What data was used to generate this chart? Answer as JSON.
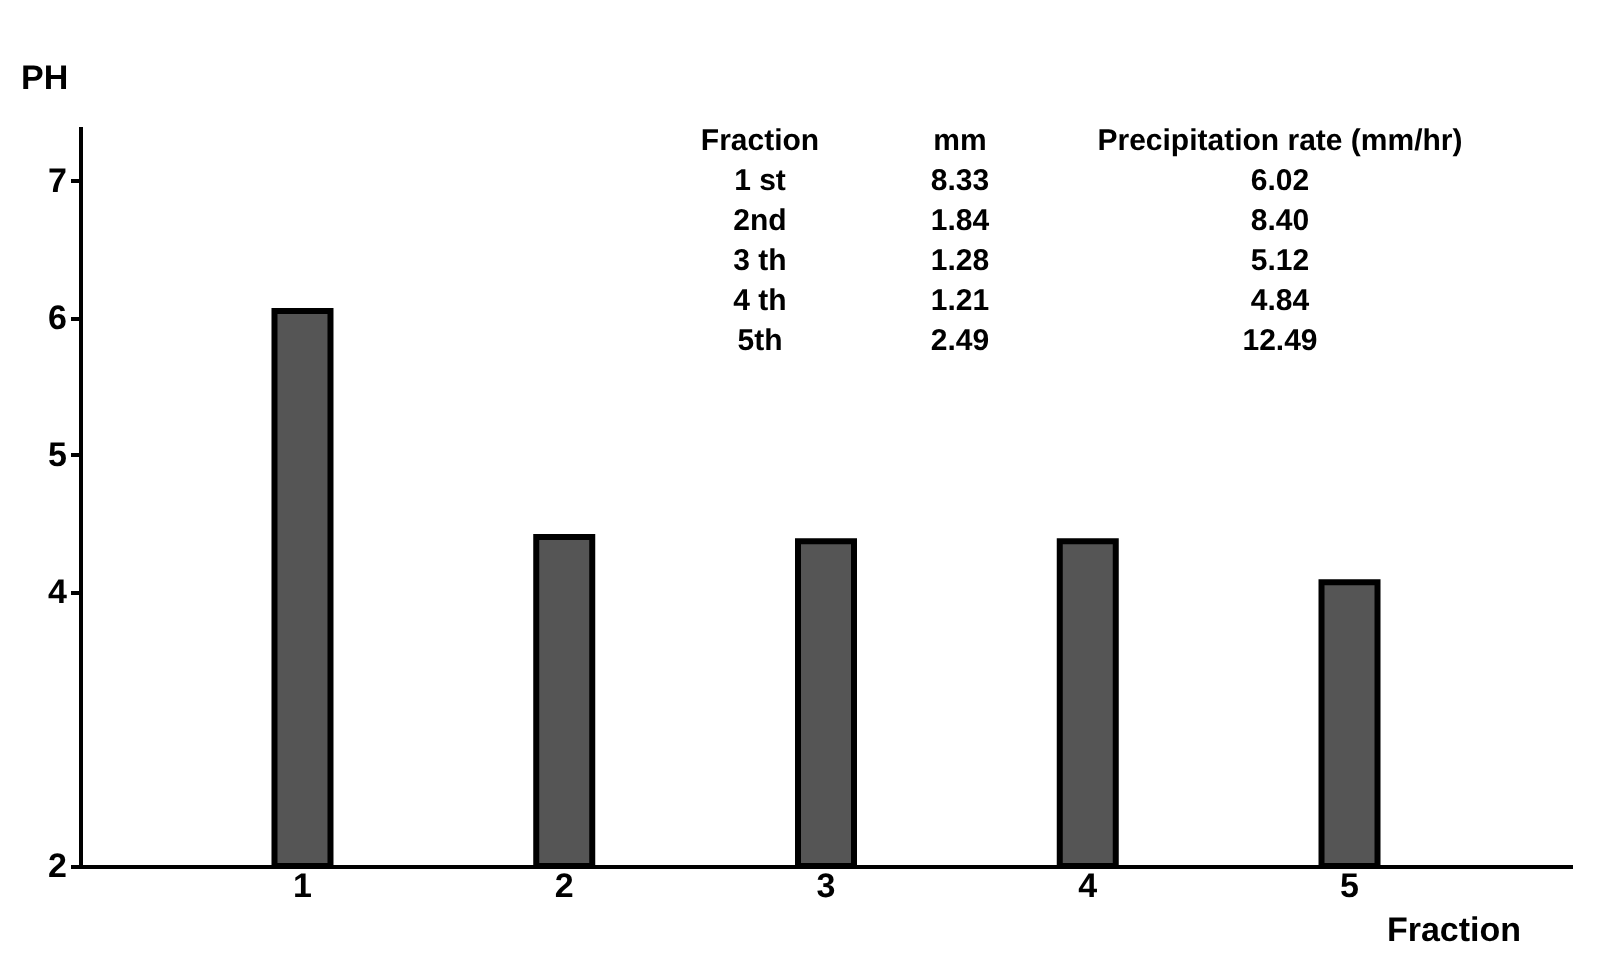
{
  "chart_data": {
    "type": "bar",
    "categories": [
      "1",
      "2",
      "3",
      "4",
      "5"
    ],
    "values": [
      6.05,
      4.4,
      4.37,
      4.37,
      4.07
    ],
    "color": "#555555",
    "xlabel": "Fraction",
    "ylabel": "PH",
    "ylim": [
      2,
      7.4
    ],
    "yticks": [
      2,
      4,
      5,
      6,
      7
    ],
    "grid": false,
    "annotations": [
      "Fraction",
      "mm",
      "Precipitation rate (mm/hr)",
      "1 st",
      "8.33",
      "6.02",
      "2nd",
      "1.84",
      "8.40",
      "3 th",
      "1.28",
      "5.12",
      "4 th",
      "1.21",
      "4.84",
      "5th",
      "2.49",
      "12.49"
    ]
  }
}
